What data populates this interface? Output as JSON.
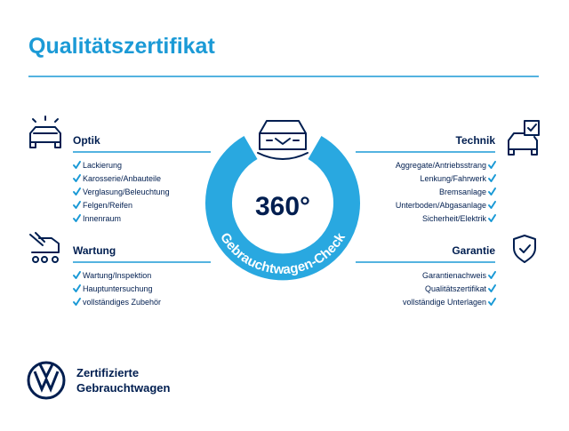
{
  "title": "Qualitätszertifikat",
  "left": [
    {
      "heading": "Optik",
      "items": [
        "Lackierung",
        "Karosserie/Anbauteile",
        "Verglasung/Beleuchtung",
        "Felgen/Reifen",
        "Innenraum"
      ]
    },
    {
      "heading": "Wartung",
      "items": [
        "Wartung/Inspektion",
        "Hauptuntersuchung",
        "vollständiges Zubehör"
      ]
    }
  ],
  "right": [
    {
      "heading": "Technik",
      "items": [
        "Aggregate/Antriebsstrang",
        "Lenkung/Fahrwerk",
        "Bremsanlage",
        "Unterboden/Abgasanlage",
        "Sicherheit/Elektrik"
      ]
    },
    {
      "heading": "Garantie",
      "items": [
        "Garantienachweis",
        "Qualitätszertifikat",
        "vollständige Unterlagen"
      ]
    }
  ],
  "center": {
    "number": "360°",
    "label": "Gebrauchtwagen-Check"
  },
  "footer": {
    "line1": "Zertifizierte",
    "line2": "Gebrauchtwagen"
  }
}
